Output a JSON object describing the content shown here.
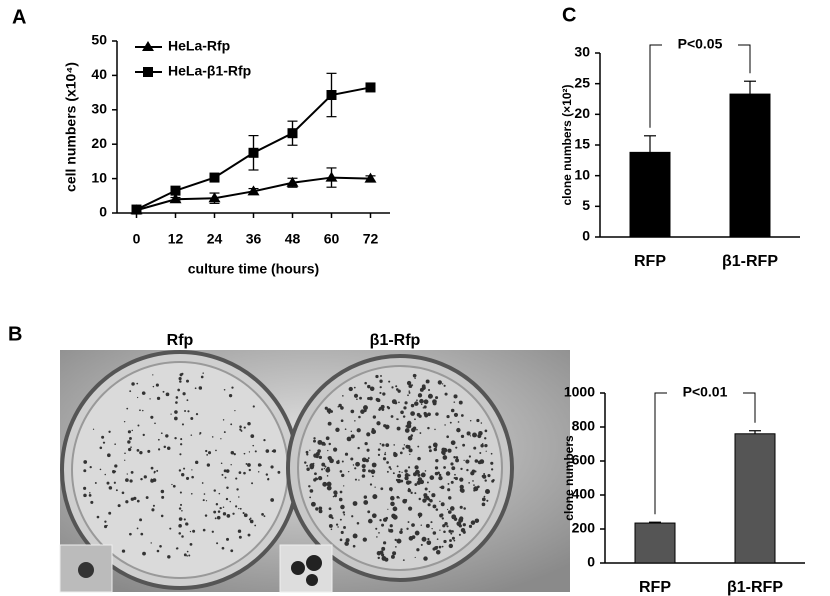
{
  "panels": [
    "A",
    "B",
    "C"
  ],
  "photo": {
    "labels": [
      "Rfp",
      "β1-Rfp"
    ]
  },
  "chart_data": [
    {
      "type": "line",
      "xlabel": "culture time (hours)",
      "ylabel": "cell numbers (x10⁴)",
      "x": [
        0,
        12,
        24,
        36,
        48,
        60,
        72
      ],
      "xlim": [
        -6,
        78
      ],
      "xticks": [
        0,
        12,
        24,
        36,
        48,
        60,
        72
      ],
      "ylim": [
        0,
        50
      ],
      "yticks": [
        0,
        10,
        20,
        30,
        40,
        50
      ],
      "series": [
        {
          "name": "HeLa-Rfp",
          "color": "#000000",
          "marker": "triangle",
          "values": [
            0.8,
            4,
            4.3,
            6.3,
            8.8,
            10.3,
            10
          ],
          "errors": [
            0.3,
            0.5,
            1.5,
            0.8,
            1.3,
            2.8,
            0.8
          ]
        },
        {
          "name": "HeLa-β1-Rfp",
          "color": "#000000",
          "marker": "square",
          "values": [
            1,
            6.5,
            10.3,
            17.5,
            23.2,
            34.3,
            36.5
          ],
          "errors": [
            0.3,
            1,
            1,
            5,
            3.5,
            6.3,
            0.8
          ]
        }
      ]
    },
    {
      "type": "bar",
      "ylabel": "clone numbers (×10²)",
      "annotation": "P<0.05",
      "categories": [
        "RFP",
        "β1-RFP"
      ],
      "values": [
        13.8,
        23.3
      ],
      "errors": [
        2.7,
        2.1
      ],
      "color": "#000000",
      "ylim": [
        0,
        30
      ],
      "yticks": [
        0,
        5,
        10,
        15,
        20,
        25,
        30
      ]
    },
    {
      "type": "bar",
      "ylabel": "clone numbers",
      "annotation": "P<0.01",
      "categories": [
        "RFP",
        "β1-RFP"
      ],
      "values": [
        235,
        760
      ],
      "errors": [
        5,
        18
      ],
      "color": "#555555",
      "ylim": [
        0,
        1000
      ],
      "yticks": [
        0,
        200,
        400,
        600,
        800,
        1000
      ]
    }
  ]
}
